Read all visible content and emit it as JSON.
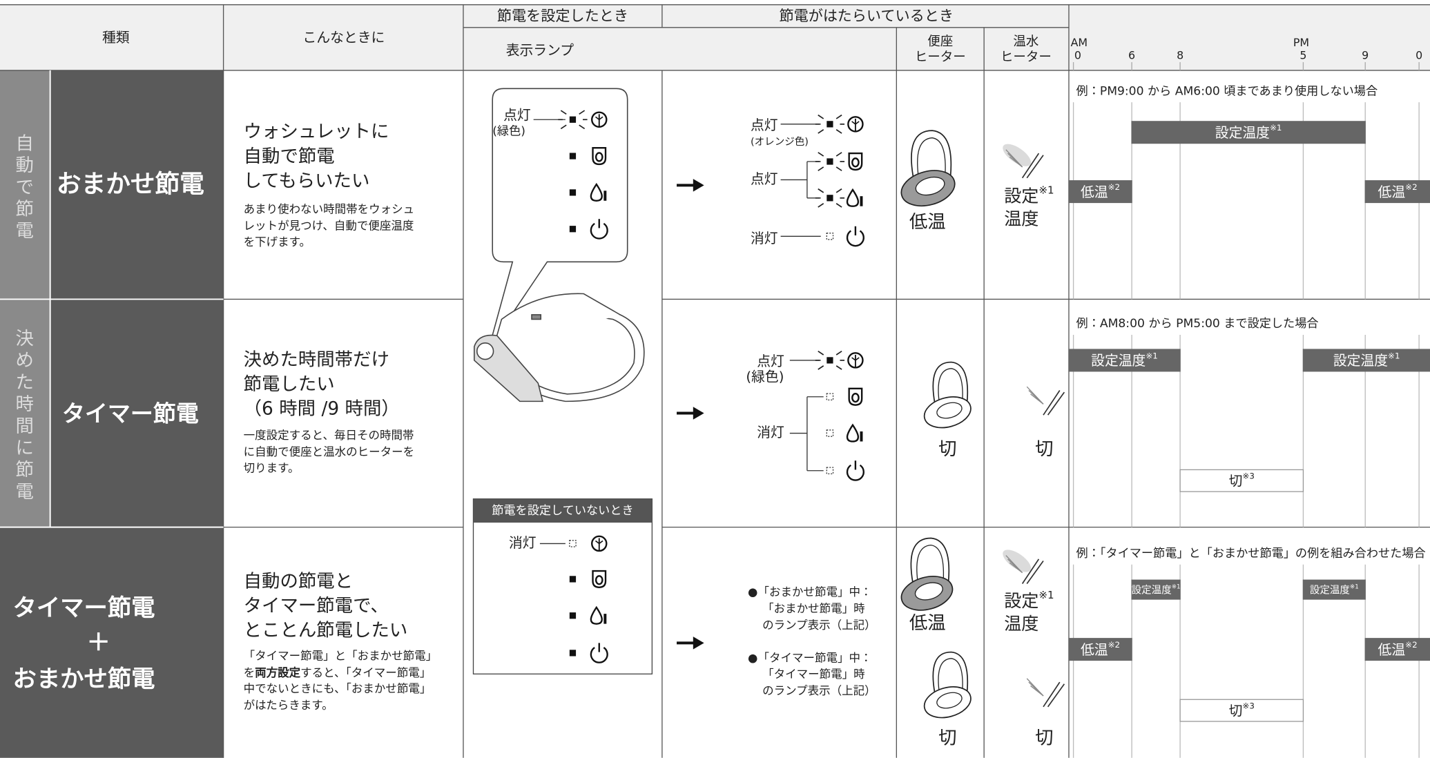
{
  "header": {
    "kind": "種類",
    "when": "こんなときに",
    "set_time": "節電を設定したとき",
    "working_time": "節電がはたらいているとき",
    "lamp": "表示ランプ",
    "seat_heater": [
      "便座",
      "ヒーター"
    ],
    "water_heater": [
      "温水",
      "ヒーター"
    ],
    "timeline": {
      "am": "AM",
      "pm": "PM",
      "ticks": [
        "0",
        "6",
        "8",
        "5",
        "9",
        "0"
      ]
    }
  },
  "lamp_unset": {
    "title": "節電を設定していないとき",
    "off": "消灯"
  },
  "rows": [
    {
      "group": [
        "自",
        "動",
        "で",
        "節",
        "電"
      ],
      "name": [
        "おまかせ節電"
      ],
      "title": [
        "ウォシュレットに",
        "自動で節電",
        "してもらいたい"
      ],
      "desc": [
        "あまり使わない時間帯をウォシュ",
        "レットが見つけ、自動で便座温度",
        "を下げます。"
      ],
      "lamp_set": [
        "点灯",
        "(緑色)"
      ],
      "lamp_working": [
        "点灯",
        "(オレンジ色)",
        "点灯",
        "消灯"
      ],
      "seat": [
        "低温"
      ],
      "water": [
        "設定",
        "温度"
      ],
      "water_note": "※1",
      "timeline": {
        "caption": "例：PM9:00 から AM6:00 頃まであまり使用しない場合",
        "bars": [
          {
            "label": "設定温度",
            "note": "※1"
          },
          {
            "label": "低温",
            "note": "※2"
          },
          {
            "label": "低温",
            "note": "※2"
          }
        ]
      }
    },
    {
      "group": [
        "決",
        "め",
        "た",
        "時",
        "間",
        "に",
        "節",
        "電"
      ],
      "name": [
        "タイマー節電"
      ],
      "title": [
        "決めた時間帯だけ",
        "節電したい",
        "（6 時間 /9 時間）"
      ],
      "desc": [
        "一度設定すると、毎日その時間帯",
        "に自動で便座と温水のヒーターを",
        "切ります。"
      ],
      "lamp_working": [
        "点灯",
        "(緑色)",
        "消灯"
      ],
      "seat": [
        "切"
      ],
      "water": [
        "切"
      ],
      "timeline": {
        "caption": "例：AM8:00 から PM5:00 まで設定した場合",
        "bars": [
          {
            "label": "設定温度",
            "note": "※1"
          },
          {
            "label": "設定温度",
            "note": "※1"
          },
          {
            "label": "切",
            "note": "※3"
          }
        ]
      }
    },
    {
      "name": [
        "タイマー節電",
        "＋",
        "おまかせ節電"
      ],
      "title": [
        "自動の節電と",
        "タイマー節電で、",
        "とことん節電したい"
      ],
      "desc": [
        "「タイマー節電」と「おまかせ節電」",
        {
          "pre": "を",
          "bold": "両方設定",
          "post": "すると、「タイマー節電」"
        },
        "中でないときにも、「おまかせ節電」",
        "がはたらきます。"
      ],
      "lamp_working": [
        [
          "●「おまかせ節電」中：",
          "「おまかせ節電」時",
          "のランプ表示（上記）"
        ],
        [
          "●「タイマー節電」中：",
          "「タイマー節電」時",
          "のランプ表示（上記）"
        ]
      ],
      "seat": [
        "低温",
        "切"
      ],
      "water": [
        "設定",
        "温度",
        "切"
      ],
      "water_note": "※1",
      "timeline": {
        "caption": "例：「タイマー節電」と「おまかせ節電」の例を組み合わせた場合",
        "bars": [
          {
            "label": "設定温度",
            "note": "※1"
          },
          {
            "label": "設定温度",
            "note": "※1"
          },
          {
            "label": "低温",
            "note": "※2"
          },
          {
            "label": "低温",
            "note": "※2"
          },
          {
            "label": "切",
            "note": "※3"
          }
        ]
      }
    }
  ]
}
